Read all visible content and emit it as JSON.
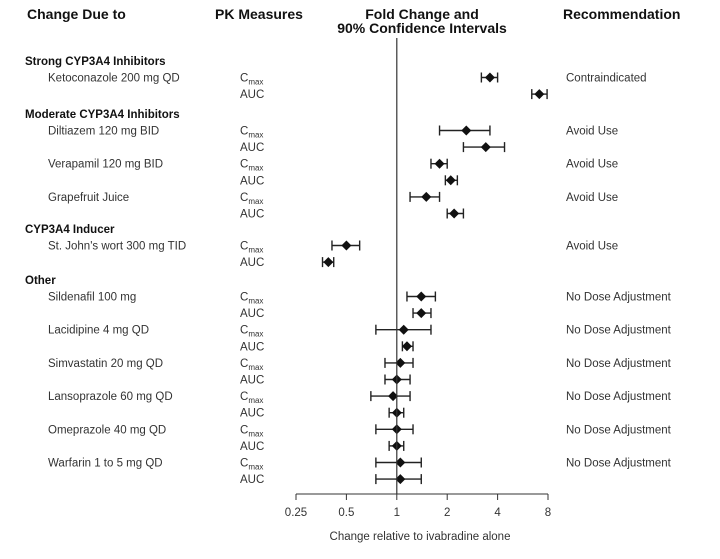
{
  "headers": {
    "change_due_to": "Change Due to",
    "pk_measures": "PK Measures",
    "fold_change_line1": "Fold Change and",
    "fold_change_line2": "90% Confidence Intervals",
    "recommendation": "Recommendation"
  },
  "chart_data": {
    "type": "forest",
    "x_scale": "log2",
    "xlim": [
      0.25,
      8
    ],
    "x_ticks": [
      "0.25",
      "0.5",
      "1",
      "2",
      "4",
      "8"
    ],
    "x_tick_values": [
      0.25,
      0.5,
      1,
      2,
      4,
      8
    ],
    "reference_line": 1,
    "xlabel": "Change relative to ivabradine alone",
    "groups": [
      {
        "label": "Strong CYP3A4 Inhibitors",
        "items": [
          {
            "treatment": "Ketoconazole 200 mg QD",
            "recommendation": "Contraindicated",
            "measures": [
              {
                "pk": "Cmax",
                "estimate": 3.6,
                "ci": [
                  3.2,
                  4.0
                ]
              },
              {
                "pk": "AUC",
                "estimate": 7.1,
                "ci": [
                  6.4,
                  7.9
                ]
              }
            ]
          }
        ]
      },
      {
        "label": "Moderate CYP3A4 Inhibitors",
        "items": [
          {
            "treatment": "Diltiazem 120 mg BID",
            "recommendation": "Avoid Use",
            "measures": [
              {
                "pk": "Cmax",
                "estimate": 2.6,
                "ci": [
                  1.8,
                  3.6
                ]
              },
              {
                "pk": "AUC",
                "estimate": 3.4,
                "ci": [
                  2.5,
                  4.4
                ]
              }
            ]
          },
          {
            "treatment": "Verapamil 120 mg BID",
            "recommendation": "Avoid Use",
            "measures": [
              {
                "pk": "Cmax",
                "estimate": 1.8,
                "ci": [
                  1.6,
                  2.0
                ]
              },
              {
                "pk": "AUC",
                "estimate": 2.1,
                "ci": [
                  1.95,
                  2.3
                ]
              }
            ]
          },
          {
            "treatment": "Grapefruit Juice",
            "recommendation": "Avoid Use",
            "measures": [
              {
                "pk": "Cmax",
                "estimate": 1.5,
                "ci": [
                  1.2,
                  1.8
                ]
              },
              {
                "pk": "AUC",
                "estimate": 2.2,
                "ci": [
                  2.0,
                  2.5
                ]
              }
            ]
          }
        ]
      },
      {
        "label": "CYP3A4 Inducer",
        "items": [
          {
            "treatment": "St. John's wort 300 mg TID",
            "recommendation": "Avoid Use",
            "measures": [
              {
                "pk": "Cmax",
                "estimate": 0.5,
                "ci": [
                  0.41,
                  0.6
                ]
              },
              {
                "pk": "AUC",
                "estimate": 0.39,
                "ci": [
                  0.36,
                  0.42
                ]
              }
            ]
          }
        ]
      },
      {
        "label": "Other",
        "items": [
          {
            "treatment": "Sildenafil 100 mg",
            "recommendation": "No Dose Adjustment",
            "measures": [
              {
                "pk": "Cmax",
                "estimate": 1.4,
                "ci": [
                  1.15,
                  1.7
                ]
              },
              {
                "pk": "AUC",
                "estimate": 1.4,
                "ci": [
                  1.25,
                  1.6
                ]
              }
            ]
          },
          {
            "treatment": "Lacidipine 4 mg QD",
            "recommendation": "No Dose Adjustment",
            "measures": [
              {
                "pk": "Cmax",
                "estimate": 1.1,
                "ci": [
                  0.75,
                  1.6
                ]
              },
              {
                "pk": "AUC",
                "estimate": 1.15,
                "ci": [
                  1.08,
                  1.25
                ]
              }
            ]
          },
          {
            "treatment": "Simvastatin 20 mg QD",
            "recommendation": "No Dose Adjustment",
            "measures": [
              {
                "pk": "Cmax",
                "estimate": 1.05,
                "ci": [
                  0.85,
                  1.25
                ]
              },
              {
                "pk": "AUC",
                "estimate": 1.0,
                "ci": [
                  0.85,
                  1.2
                ]
              }
            ]
          },
          {
            "treatment": "Lansoprazole 60 mg QD",
            "recommendation": "No Dose Adjustment",
            "measures": [
              {
                "pk": "Cmax",
                "estimate": 0.95,
                "ci": [
                  0.7,
                  1.2
                ]
              },
              {
                "pk": "AUC",
                "estimate": 1.0,
                "ci": [
                  0.9,
                  1.1
                ]
              }
            ]
          },
          {
            "treatment": "Omeprazole 40 mg QD",
            "recommendation": "No Dose Adjustment",
            "measures": [
              {
                "pk": "Cmax",
                "estimate": 1.0,
                "ci": [
                  0.75,
                  1.25
                ]
              },
              {
                "pk": "AUC",
                "estimate": 1.0,
                "ci": [
                  0.9,
                  1.1
                ]
              }
            ]
          },
          {
            "treatment": "Warfarin 1 to 5 mg QD",
            "recommendation": "No Dose Adjustment",
            "measures": [
              {
                "pk": "Cmax",
                "estimate": 1.05,
                "ci": [
                  0.75,
                  1.4
                ]
              },
              {
                "pk": "AUC",
                "estimate": 1.05,
                "ci": [
                  0.75,
                  1.4
                ]
              }
            ]
          }
        ]
      }
    ]
  }
}
